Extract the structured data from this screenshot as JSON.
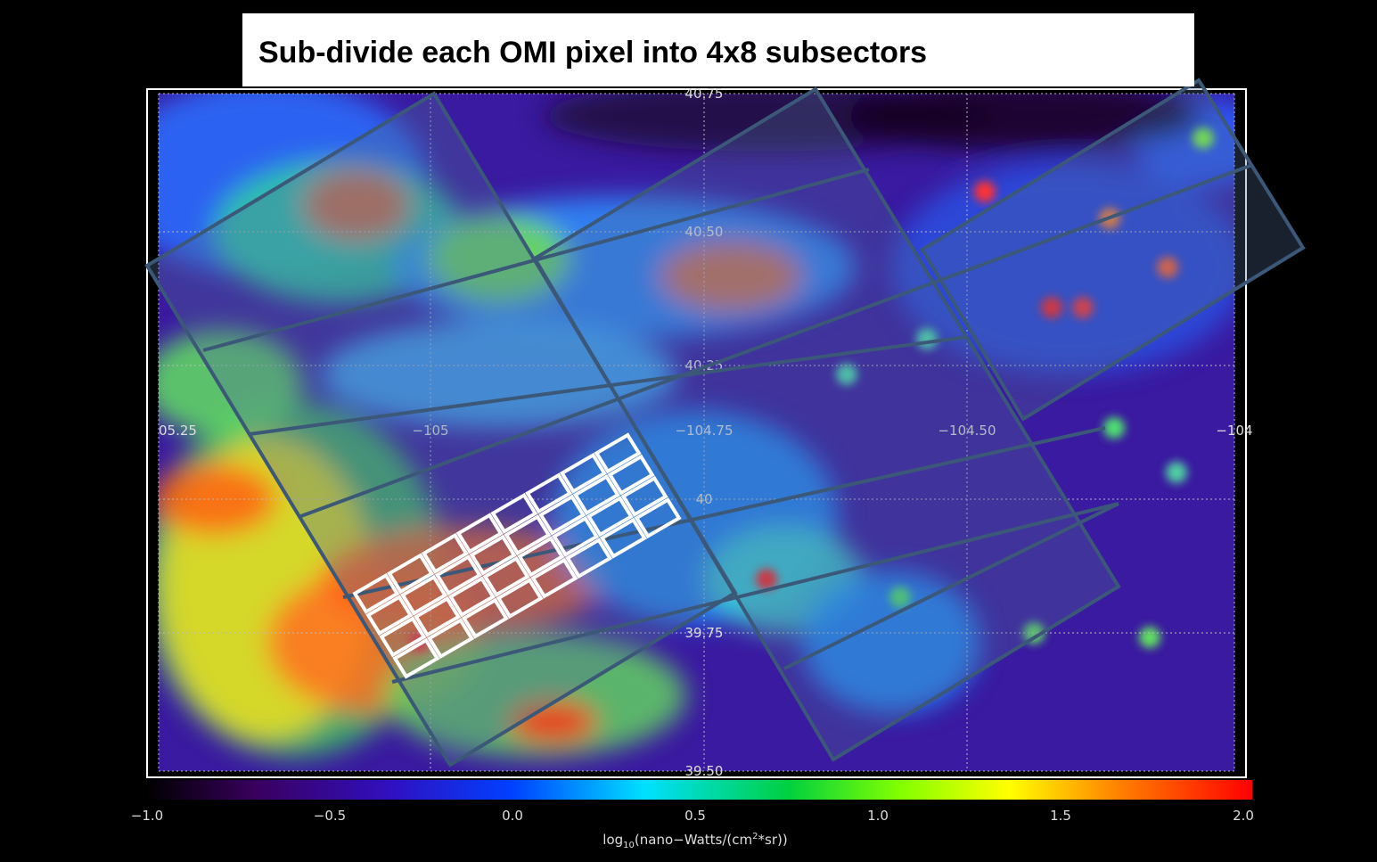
{
  "title": "Sub-divide each OMI pixel into 4x8 subsectors",
  "map": {
    "lon_labels": [
      "05.25",
      "−105",
      "−104.75",
      "−104.50",
      "−104"
    ],
    "lat_labels": [
      "40.75",
      "40.50",
      "40.25",
      "40",
      "39.75",
      "39.50"
    ]
  },
  "colorbar": {
    "tick_labels": [
      "−1.0",
      "−0.5",
      "0.0",
      "0.5",
      "1.0",
      "1.5",
      "2.0"
    ],
    "label": {
      "base": "log",
      "subscript": "10",
      "unit": "(nano−Watts/(cm",
      "superscript": "2",
      "tail": "*sr))"
    }
  }
}
